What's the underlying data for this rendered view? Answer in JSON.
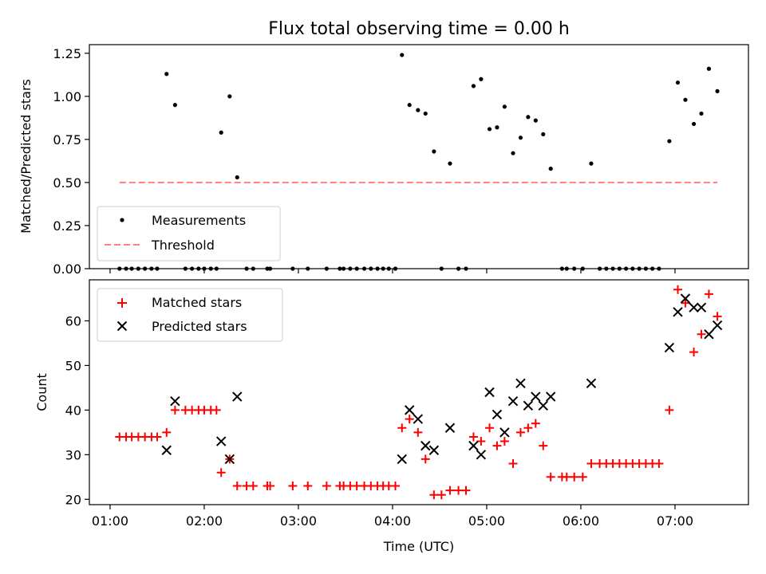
{
  "chart_data": [
    {
      "type": "scatter",
      "title": "Flux total observing time = 0.00 h",
      "xlabel": "",
      "ylabel": "Matched/Predicted stars",
      "xlim_hours": [
        0.78,
        7.78
      ],
      "ylim": [
        0,
        1.3
      ],
      "xticks": [
        {
          "value": 1,
          "label": "01:00"
        },
        {
          "value": 2,
          "label": "02:00"
        },
        {
          "value": 3,
          "label": "03:00"
        },
        {
          "value": 4,
          "label": "04:00"
        },
        {
          "value": 5,
          "label": "05:00"
        },
        {
          "value": 6,
          "label": "06:00"
        },
        {
          "value": 7,
          "label": "07:00"
        }
      ],
      "yticks": [
        {
          "value": 0,
          "label": "0.00"
        },
        {
          "value": 0.25,
          "label": "0.25"
        },
        {
          "value": 0.5,
          "label": "0.50"
        },
        {
          "value": 0.75,
          "label": "0.75"
        },
        {
          "value": 1.0,
          "label": "1.00"
        },
        {
          "value": 1.25,
          "label": "1.25"
        }
      ],
      "series": [
        {
          "name": "Measurements",
          "style": "dot",
          "color": "#000000",
          "points": [
            [
              1.1,
              0
            ],
            [
              1.17,
              0
            ],
            [
              1.23,
              0
            ],
            [
              1.3,
              0
            ],
            [
              1.37,
              0
            ],
            [
              1.44,
              0
            ],
            [
              1.5,
              0
            ],
            [
              1.6,
              1.13
            ],
            [
              1.69,
              0.95
            ],
            [
              1.8,
              0
            ],
            [
              1.87,
              0
            ],
            [
              1.94,
              0
            ],
            [
              2.0,
              0
            ],
            [
              2.07,
              0
            ],
            [
              2.13,
              0
            ],
            [
              2.18,
              0.79
            ],
            [
              2.27,
              1.0
            ],
            [
              2.35,
              0.53
            ],
            [
              2.45,
              0
            ],
            [
              2.52,
              0
            ],
            [
              2.67,
              0
            ],
            [
              2.7,
              0
            ],
            [
              2.94,
              0
            ],
            [
              3.1,
              0
            ],
            [
              3.3,
              0
            ],
            [
              3.44,
              0
            ],
            [
              3.48,
              0
            ],
            [
              3.55,
              0
            ],
            [
              3.62,
              0
            ],
            [
              3.7,
              0
            ],
            [
              3.77,
              0
            ],
            [
              3.84,
              0
            ],
            [
              3.9,
              0
            ],
            [
              3.96,
              0
            ],
            [
              4.03,
              0
            ],
            [
              4.1,
              1.24
            ],
            [
              4.18,
              0.95
            ],
            [
              4.27,
              0.92
            ],
            [
              4.35,
              0.9
            ],
            [
              4.44,
              0.68
            ],
            [
              4.52,
              0
            ],
            [
              4.61,
              0.61
            ],
            [
              4.7,
              0
            ],
            [
              4.78,
              0
            ],
            [
              4.86,
              1.06
            ],
            [
              4.94,
              1.1
            ],
            [
              5.03,
              0.81
            ],
            [
              5.11,
              0.82
            ],
            [
              5.19,
              0.94
            ],
            [
              5.28,
              0.67
            ],
            [
              5.36,
              0.76
            ],
            [
              5.44,
              0.88
            ],
            [
              5.52,
              0.86
            ],
            [
              5.6,
              0.78
            ],
            [
              5.68,
              0.58
            ],
            [
              5.8,
              0
            ],
            [
              5.85,
              0
            ],
            [
              5.93,
              0
            ],
            [
              6.02,
              0
            ],
            [
              6.11,
              0.61
            ],
            [
              6.2,
              0
            ],
            [
              6.27,
              0
            ],
            [
              6.34,
              0
            ],
            [
              6.41,
              0
            ],
            [
              6.48,
              0
            ],
            [
              6.55,
              0
            ],
            [
              6.62,
              0
            ],
            [
              6.69,
              0
            ],
            [
              6.76,
              0
            ],
            [
              6.83,
              0
            ],
            [
              6.94,
              0.74
            ],
            [
              7.03,
              1.08
            ],
            [
              7.11,
              0.98
            ],
            [
              7.2,
              0.84
            ],
            [
              7.28,
              0.9
            ],
            [
              7.36,
              1.16
            ],
            [
              7.45,
              1.03
            ]
          ]
        },
        {
          "name": "Threshold",
          "style": "dashed-line",
          "color": "#ff7f7f",
          "points": [
            [
              1.1,
              0.5
            ],
            [
              7.45,
              0.5
            ]
          ]
        }
      ],
      "legend": {
        "position": "lower-left",
        "entries": [
          "Measurements",
          "Threshold"
        ]
      }
    },
    {
      "type": "scatter",
      "title": "",
      "xlabel": "Time (UTC)",
      "ylabel": "Count",
      "xlim_hours": [
        0.78,
        7.78
      ],
      "ylim": [
        18.8,
        69.2
      ],
      "xticks": [
        {
          "value": 1,
          "label": "01:00"
        },
        {
          "value": 2,
          "label": "02:00"
        },
        {
          "value": 3,
          "label": "03:00"
        },
        {
          "value": 4,
          "label": "04:00"
        },
        {
          "value": 5,
          "label": "05:00"
        },
        {
          "value": 6,
          "label": "06:00"
        },
        {
          "value": 7,
          "label": "07:00"
        }
      ],
      "yticks": [
        {
          "value": 20,
          "label": "20"
        },
        {
          "value": 30,
          "label": "30"
        },
        {
          "value": 40,
          "label": "40"
        },
        {
          "value": 50,
          "label": "50"
        },
        {
          "value": 60,
          "label": "60"
        }
      ],
      "series": [
        {
          "name": "Matched stars",
          "style": "plus",
          "color": "#ff0000",
          "points": [
            [
              1.1,
              34
            ],
            [
              1.17,
              34
            ],
            [
              1.23,
              34
            ],
            [
              1.3,
              34
            ],
            [
              1.37,
              34
            ],
            [
              1.44,
              34
            ],
            [
              1.5,
              34
            ],
            [
              1.6,
              35
            ],
            [
              1.69,
              40
            ],
            [
              1.8,
              40
            ],
            [
              1.87,
              40
            ],
            [
              1.94,
              40
            ],
            [
              2.0,
              40
            ],
            [
              2.07,
              40
            ],
            [
              2.13,
              40
            ],
            [
              2.18,
              26
            ],
            [
              2.27,
              29
            ],
            [
              2.35,
              23
            ],
            [
              2.45,
              23
            ],
            [
              2.52,
              23
            ],
            [
              2.67,
              23
            ],
            [
              2.7,
              23
            ],
            [
              2.94,
              23
            ],
            [
              3.1,
              23
            ],
            [
              3.3,
              23
            ],
            [
              3.44,
              23
            ],
            [
              3.48,
              23
            ],
            [
              3.55,
              23
            ],
            [
              3.62,
              23
            ],
            [
              3.7,
              23
            ],
            [
              3.77,
              23
            ],
            [
              3.84,
              23
            ],
            [
              3.9,
              23
            ],
            [
              3.96,
              23
            ],
            [
              4.03,
              23
            ],
            [
              4.1,
              36
            ],
            [
              4.18,
              38
            ],
            [
              4.27,
              35
            ],
            [
              4.35,
              29
            ],
            [
              4.44,
              21
            ],
            [
              4.52,
              21
            ],
            [
              4.61,
              22
            ],
            [
              4.7,
              22
            ],
            [
              4.78,
              22
            ],
            [
              4.86,
              34
            ],
            [
              4.94,
              33
            ],
            [
              5.03,
              36
            ],
            [
              5.11,
              32
            ],
            [
              5.19,
              33
            ],
            [
              5.28,
              28
            ],
            [
              5.36,
              35
            ],
            [
              5.44,
              36
            ],
            [
              5.52,
              37
            ],
            [
              5.6,
              32
            ],
            [
              5.68,
              25
            ],
            [
              5.8,
              25
            ],
            [
              5.85,
              25
            ],
            [
              5.93,
              25
            ],
            [
              6.02,
              25
            ],
            [
              6.11,
              28
            ],
            [
              6.2,
              28
            ],
            [
              6.27,
              28
            ],
            [
              6.34,
              28
            ],
            [
              6.41,
              28
            ],
            [
              6.48,
              28
            ],
            [
              6.55,
              28
            ],
            [
              6.62,
              28
            ],
            [
              6.69,
              28
            ],
            [
              6.76,
              28
            ],
            [
              6.83,
              28
            ],
            [
              6.94,
              40
            ],
            [
              7.03,
              67
            ],
            [
              7.11,
              64
            ],
            [
              7.2,
              53
            ],
            [
              7.28,
              57
            ],
            [
              7.36,
              66
            ],
            [
              7.45,
              61
            ]
          ]
        },
        {
          "name": "Predicted stars",
          "style": "x",
          "color": "#000000",
          "points": [
            [
              1.6,
              31
            ],
            [
              1.69,
              42
            ],
            [
              2.18,
              33
            ],
            [
              2.27,
              29
            ],
            [
              2.35,
              43
            ],
            [
              4.1,
              29
            ],
            [
              4.18,
              40
            ],
            [
              4.27,
              38
            ],
            [
              4.35,
              32
            ],
            [
              4.44,
              31
            ],
            [
              4.61,
              36
            ],
            [
              4.86,
              32
            ],
            [
              4.94,
              30
            ],
            [
              5.03,
              44
            ],
            [
              5.11,
              39
            ],
            [
              5.19,
              35
            ],
            [
              5.28,
              42
            ],
            [
              5.36,
              46
            ],
            [
              5.44,
              41
            ],
            [
              5.52,
              43
            ],
            [
              5.6,
              41
            ],
            [
              5.68,
              43
            ],
            [
              6.11,
              46
            ],
            [
              6.94,
              54
            ],
            [
              7.03,
              62
            ],
            [
              7.11,
              65
            ],
            [
              7.2,
              63
            ],
            [
              7.28,
              63
            ],
            [
              7.36,
              57
            ],
            [
              7.45,
              59
            ]
          ]
        }
      ],
      "legend": {
        "position": "upper-left",
        "entries": [
          "Matched stars",
          "Predicted stars"
        ]
      }
    }
  ]
}
